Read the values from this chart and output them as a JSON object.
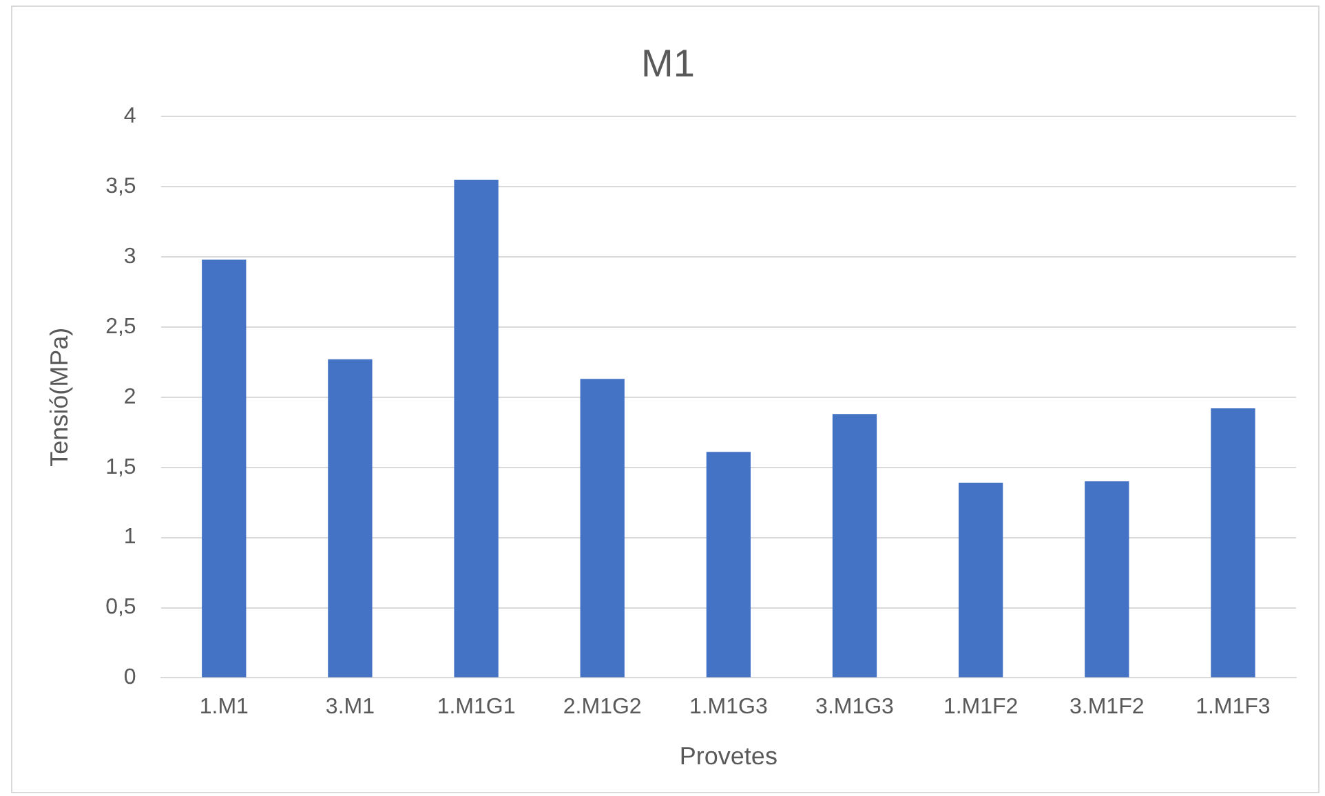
{
  "chart_data": {
    "type": "bar",
    "title": "M1",
    "xlabel": "Provetes",
    "ylabel": "Tensió(MPa)",
    "categories": [
      "1.M1",
      "3.M1",
      "1.M1G1",
      "2.M1G2",
      "1.M1G3",
      "3.M1G3",
      "1.M1F2",
      "3.M1F2",
      "1.M1F3"
    ],
    "values": [
      2.98,
      2.27,
      3.55,
      2.13,
      1.61,
      1.88,
      1.39,
      1.4,
      1.92
    ],
    "color": "#4472c4",
    "ylim": [
      0,
      4
    ],
    "yticks": [
      0,
      {
        "value": 0.5,
        "label": "0,5"
      },
      1,
      {
        "value": 1.5,
        "label": "1,5"
      },
      2,
      {
        "value": 2.5,
        "label": "2,5"
      },
      3,
      {
        "value": 3.5,
        "label": "3,5"
      },
      4
    ],
    "grid": "y",
    "legend": false
  }
}
